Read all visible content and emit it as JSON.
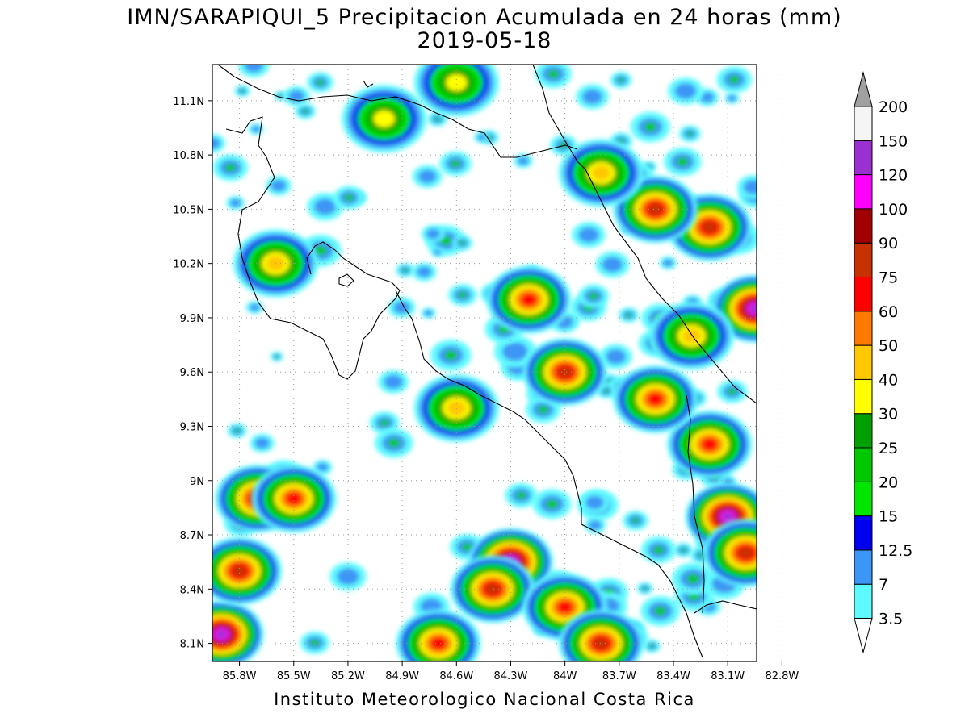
{
  "title": {
    "line1": "IMN/SARAPIQUI_5 Precipitacion Acumulada en 24 horas (mm)",
    "line2": "2019-05-18"
  },
  "footer": "Instituto Meteorologico Nacional Costa Rica",
  "axes": {
    "lat_labels": [
      "11.1N",
      "10.8N",
      "10.5N",
      "10.2N",
      "9.9N",
      "9.6N",
      "9.3N",
      "9N",
      "8.7N",
      "8.4N",
      "8.1N"
    ],
    "lat_values": [
      11.1,
      10.8,
      10.5,
      10.2,
      9.9,
      9.6,
      9.3,
      9.0,
      8.7,
      8.4,
      8.1
    ],
    "lon_labels": [
      "85.8W",
      "85.5W",
      "85.2W",
      "84.9W",
      "84.6W",
      "84.3W",
      "84W",
      "83.7W",
      "83.4W",
      "83.1W",
      "82.8W"
    ],
    "lon_values": [
      -85.8,
      -85.5,
      -85.2,
      -84.9,
      -84.6,
      -84.3,
      -84.0,
      -83.7,
      -83.4,
      -83.1,
      -82.8
    ],
    "lon_range": [
      -85.95,
      -82.94
    ],
    "lat_range": [
      8.0,
      11.3
    ],
    "grid": "dotted"
  },
  "legend": {
    "levels": [
      "3.5",
      "7",
      "12.5",
      "15",
      "20",
      "25",
      "30",
      "40",
      "50",
      "60",
      "75",
      "90",
      "100",
      "120",
      "150",
      "200"
    ],
    "colors": [
      "#ffffff",
      "#5ffaff",
      "#3c96f5",
      "#0000f0",
      "#00e600",
      "#00c800",
      "#00a000",
      "#ffff00",
      "#ffc800",
      "#ff7800",
      "#ff0000",
      "#c83200",
      "#a00000",
      "#ff00ff",
      "#9b30d0",
      "#f5f5f5",
      "#a0a0a0"
    ]
  },
  "precip_hotspots": [
    {
      "lon": -85.9,
      "lat": 8.15,
      "level": "120"
    },
    {
      "lon": -84.3,
      "lat": 8.55,
      "level": "120"
    },
    {
      "lon": -83.1,
      "lat": 8.8,
      "level": "120"
    },
    {
      "lon": -82.95,
      "lat": 9.95,
      "level": "120"
    },
    {
      "lon": -83.2,
      "lat": 10.4,
      "level": "75"
    },
    {
      "lon": -83.5,
      "lat": 10.5,
      "level": "75"
    },
    {
      "lon": -83.8,
      "lat": 10.7,
      "level": "40"
    },
    {
      "lon": -85.7,
      "lat": 8.9,
      "level": "75"
    },
    {
      "lon": -85.8,
      "lat": 8.5,
      "level": "75"
    },
    {
      "lon": -84.0,
      "lat": 9.6,
      "level": "75"
    },
    {
      "lon": -83.2,
      "lat": 9.2,
      "level": "60"
    },
    {
      "lon": -83.0,
      "lat": 8.6,
      "level": "75"
    },
    {
      "lon": -84.4,
      "lat": 8.4,
      "level": "75"
    },
    {
      "lon": -84.0,
      "lat": 8.3,
      "level": "60"
    },
    {
      "lon": -84.7,
      "lat": 8.1,
      "level": "60"
    },
    {
      "lon": -83.8,
      "lat": 8.1,
      "level": "75"
    },
    {
      "lon": -84.2,
      "lat": 10.0,
      "level": "60"
    },
    {
      "lon": -83.3,
      "lat": 9.8,
      "level": "40"
    },
    {
      "lon": -83.5,
      "lat": 9.45,
      "level": "60"
    },
    {
      "lon": -85.0,
      "lat": 11.0,
      "level": "30"
    },
    {
      "lon": -84.6,
      "lat": 11.2,
      "level": "30"
    },
    {
      "lon": -85.6,
      "lat": 10.2,
      "level": "40"
    },
    {
      "lon": -85.5,
      "lat": 8.9,
      "level": "60"
    },
    {
      "lon": -84.6,
      "lat": 9.4,
      "level": "40"
    }
  ]
}
